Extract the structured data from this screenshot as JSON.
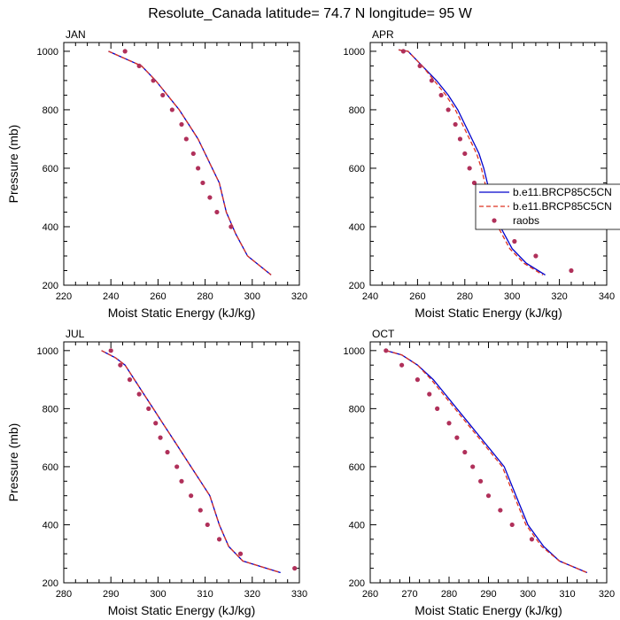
{
  "title": "Resolute_Canada  latitude= 74.7 N longitude= 95 W",
  "colors": {
    "model1": "#0000cc",
    "model2": "#dd3322",
    "raobs": "#b0305a"
  },
  "legend": {
    "placement": "APR panel, right side, clipped at figure edge",
    "entries": [
      {
        "label": "b.e11.BRCP85C5CN",
        "style": "solid-line",
        "color_key": "model1"
      },
      {
        "label": "b.e11.BRCP85C5CN",
        "style": "dashed-line",
        "color_key": "model2"
      },
      {
        "label": "raobs",
        "style": "marker",
        "color_key": "raobs"
      }
    ]
  },
  "chart_data": [
    {
      "type": "line",
      "title": "JAN",
      "xlabel": "Moist Static Energy (kJ/kg)",
      "ylabel": "Pressure (mb)",
      "xlim": [
        220,
        320
      ],
      "ylim": [
        1030,
        200
      ],
      "xticks": [
        220,
        240,
        260,
        280,
        300,
        320
      ],
      "yticks": [
        200,
        400,
        600,
        800,
        1000
      ],
      "series": [
        {
          "name": "b.e11.BRCP85C5CN",
          "kind": "line",
          "color_key": "model1",
          "x": [
            239,
            246,
            253,
            259,
            264,
            269,
            273,
            277,
            280,
            283,
            286,
            289,
            293,
            298,
            308
          ],
          "y": [
            1000,
            975,
            950,
            900,
            850,
            800,
            750,
            700,
            650,
            600,
            550,
            450,
            375,
            300,
            235
          ]
        },
        {
          "name": "b.e11.BRCP85C5CN",
          "kind": "dashed",
          "color_key": "model2",
          "x": [
            239,
            246,
            253,
            259,
            264,
            269,
            273,
            277,
            280,
            283,
            286,
            289,
            293,
            298,
            308
          ],
          "y": [
            1000,
            975,
            950,
            900,
            850,
            800,
            750,
            700,
            650,
            600,
            550,
            450,
            375,
            300,
            235
          ]
        },
        {
          "name": "raobs",
          "kind": "scatter",
          "color_key": "raobs",
          "x": [
            246,
            252,
            258,
            262,
            266,
            270,
            272,
            275,
            277,
            279,
            282,
            285,
            291
          ],
          "y": [
            1000,
            950,
            900,
            850,
            800,
            750,
            700,
            650,
            600,
            550,
            500,
            450,
            400
          ]
        }
      ]
    },
    {
      "type": "line",
      "title": "APR",
      "xlabel": "Moist Static Energy (kJ/kg)",
      "ylabel": "",
      "xlim": [
        240,
        340
      ],
      "ylim": [
        1030,
        200
      ],
      "xticks": [
        240,
        260,
        280,
        300,
        320,
        340
      ],
      "yticks": [
        200,
        400,
        600,
        800,
        1000
      ],
      "series": [
        {
          "name": "b.e11.BRCP85C5CN",
          "kind": "line",
          "color_key": "model1",
          "x": [
            252,
            256,
            262,
            268,
            273,
            277,
            280,
            283,
            286,
            288,
            291,
            295,
            300,
            306,
            314
          ],
          "y": [
            1005,
            1000,
            950,
            900,
            850,
            800,
            750,
            700,
            650,
            600,
            500,
            400,
            325,
            275,
            235
          ]
        },
        {
          "name": "b.e11.BRCP85C5CN",
          "kind": "dashed",
          "color_key": "model2",
          "x": [
            252,
            256,
            262,
            267,
            272,
            276,
            279,
            282,
            285,
            287,
            290,
            294,
            299,
            305,
            313
          ],
          "y": [
            1005,
            1000,
            950,
            900,
            850,
            800,
            750,
            700,
            650,
            600,
            500,
            400,
            325,
            275,
            235
          ]
        },
        {
          "name": "raobs",
          "kind": "scatter",
          "color_key": "raobs",
          "x": [
            254,
            261,
            266,
            270,
            273,
            276,
            278,
            280,
            282,
            284,
            286,
            288,
            290,
            295,
            301,
            310,
            325
          ],
          "y": [
            1000,
            950,
            900,
            850,
            800,
            750,
            700,
            650,
            600,
            550,
            500,
            450,
            450,
            400,
            350,
            300,
            250
          ]
        }
      ]
    },
    {
      "type": "line",
      "title": "JUL",
      "xlabel": "Moist Static Energy (kJ/kg)",
      "ylabel": "Pressure (mb)",
      "xlim": [
        280,
        330
      ],
      "ylim": [
        1030,
        200
      ],
      "xticks": [
        280,
        290,
        300,
        310,
        320,
        330
      ],
      "yticks": [
        200,
        400,
        600,
        800,
        1000
      ],
      "series": [
        {
          "name": "b.e11.BRCP85C5CN",
          "kind": "line",
          "color_key": "model1",
          "x": [
            288,
            291,
            293,
            295,
            297,
            299,
            301,
            303,
            305,
            307,
            309,
            311,
            313,
            315,
            318,
            326
          ],
          "y": [
            1000,
            975,
            950,
            900,
            850,
            800,
            750,
            700,
            650,
            600,
            550,
            500,
            400,
            325,
            275,
            235
          ]
        },
        {
          "name": "b.e11.BRCP85C5CN",
          "kind": "dashed",
          "color_key": "model2",
          "x": [
            288,
            291,
            293,
            295,
            297,
            299,
            301,
            303,
            305,
            307,
            309,
            311,
            313,
            315,
            318,
            326
          ],
          "y": [
            1000,
            975,
            950,
            900,
            850,
            800,
            750,
            700,
            650,
            600,
            550,
            500,
            400,
            325,
            275,
            235
          ]
        },
        {
          "name": "raobs",
          "kind": "scatter",
          "color_key": "raobs",
          "x": [
            290,
            292,
            294,
            296,
            298,
            299.5,
            300.5,
            302,
            304,
            305,
            307,
            309,
            310.5,
            313,
            317.5,
            329
          ],
          "y": [
            1000,
            950,
            900,
            850,
            800,
            750,
            700,
            650,
            600,
            550,
            500,
            450,
            400,
            350,
            300,
            250
          ]
        }
      ]
    },
    {
      "type": "line",
      "title": "OCT",
      "xlabel": "Moist Static Energy (kJ/kg)",
      "ylabel": "",
      "xlim": [
        260,
        320
      ],
      "ylim": [
        1030,
        200
      ],
      "xticks": [
        260,
        270,
        280,
        290,
        300,
        310,
        320
      ],
      "yticks": [
        200,
        400,
        600,
        800,
        1000
      ],
      "series": [
        {
          "name": "b.e11.BRCP85C5CN",
          "kind": "line",
          "color_key": "model1",
          "x": [
            264,
            268,
            272,
            276,
            279,
            282,
            285,
            288,
            291,
            294,
            297,
            300,
            304,
            308,
            315
          ],
          "y": [
            1000,
            985,
            950,
            900,
            850,
            800,
            750,
            700,
            650,
            600,
            500,
            400,
            325,
            275,
            235
          ]
        },
        {
          "name": "b.e11.BRCP85C5CN",
          "kind": "dashed",
          "color_key": "model2",
          "x": [
            264,
            268,
            272,
            275.5,
            278.5,
            281.5,
            284.5,
            287.5,
            290.5,
            293.5,
            296.5,
            299.5,
            303.5,
            308,
            315
          ],
          "y": [
            1000,
            985,
            950,
            900,
            850,
            800,
            750,
            700,
            650,
            600,
            500,
            400,
            325,
            275,
            235
          ]
        },
        {
          "name": "raobs",
          "kind": "scatter",
          "color_key": "raobs",
          "x": [
            264,
            268,
            272,
            275,
            277,
            280,
            282,
            284,
            286,
            288,
            290,
            293,
            296,
            301
          ],
          "y": [
            1000,
            950,
            900,
            850,
            800,
            750,
            700,
            650,
            600,
            550,
            500,
            450,
            400,
            350
          ]
        }
      ]
    }
  ]
}
